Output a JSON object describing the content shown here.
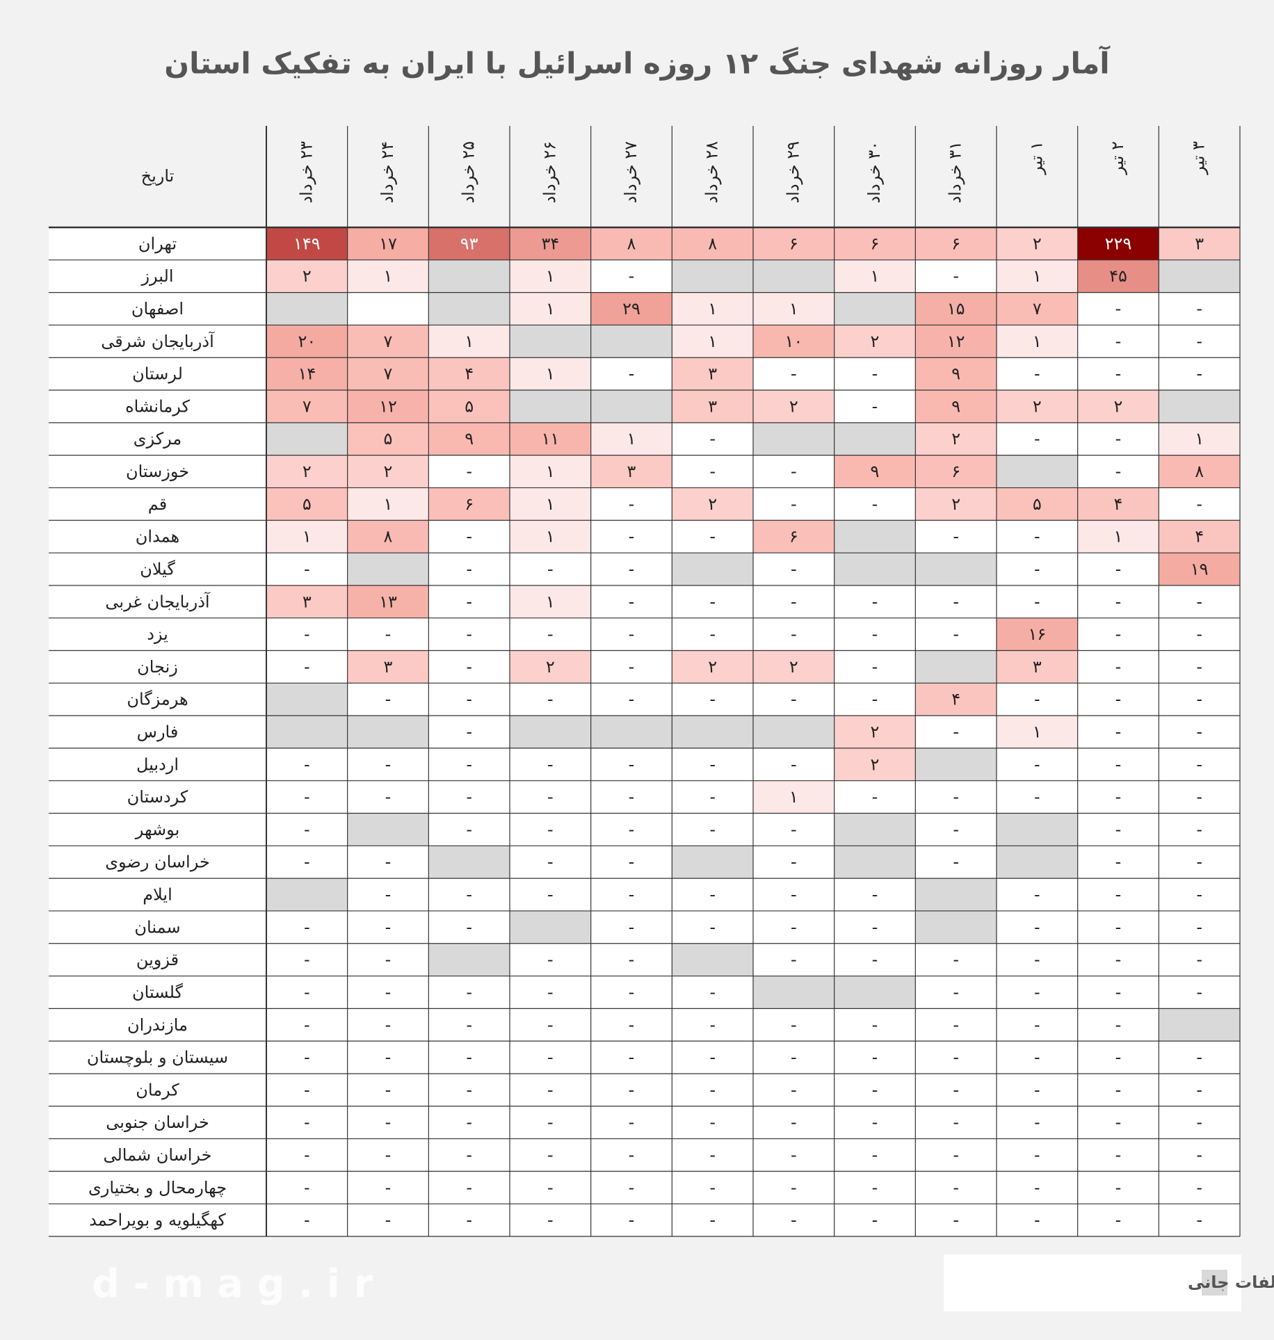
{
  "title": "آمار روزانه شهدای جنگ ۱۲ روزه اسرائیل با ایران به تفکیک استان",
  "table": {
    "corner": "تاریخ",
    "columns": [
      "۲۳ خرداد",
      "۲۴ خرداد",
      "۲۵ خرداد",
      "۲۶ خرداد",
      "۲۷ خرداد",
      "۲۸ خرداد",
      "۲۹ خرداد",
      "۳۰ خرداد",
      "۳۱ خرداد",
      "۱ تیر",
      "۲ تیر",
      "۳ تیر"
    ],
    "blank_cells": [
      [
        2,
        1
      ]
    ],
    "rows": [
      {
        "province": "تهران",
        "cells": [
          "۱۴۹",
          "۱۷",
          "۹۳",
          "۳۴",
          "۸",
          "۸",
          "۶",
          "۶",
          "۶",
          "۲",
          "۲۲۹",
          "۳"
        ]
      },
      {
        "province": "البرز",
        "cells": [
          "۲",
          "۱",
          null,
          "۱",
          "-",
          null,
          null,
          "۱",
          "-",
          "۱",
          "۴۵",
          null
        ]
      },
      {
        "province": "اصفهان",
        "cells": [
          null,
          null,
          null,
          "۱",
          "۲۹",
          "۱",
          "۱",
          null,
          "۱۵",
          "۷",
          "-",
          "-"
        ]
      },
      {
        "province": "آذربایجان شرقی",
        "cells": [
          "۲۰",
          "۷",
          "۱",
          null,
          null,
          "۱",
          "۱۰",
          "۲",
          "۱۲",
          "۱",
          "-",
          "-"
        ]
      },
      {
        "province": "لرستان",
        "cells": [
          "۱۴",
          "۷",
          "۴",
          "۱",
          "-",
          "۳",
          "-",
          "-",
          "۹",
          "-",
          "-",
          "-"
        ]
      },
      {
        "province": "کرمانشاه",
        "cells": [
          "۷",
          "۱۲",
          "۵",
          null,
          null,
          "۳",
          "۲",
          "-",
          "۹",
          "۲",
          "۲",
          null
        ]
      },
      {
        "province": "مرکزی",
        "cells": [
          null,
          "۵",
          "۹",
          "۱۱",
          "۱",
          "-",
          null,
          null,
          "۲",
          "-",
          "-",
          "۱"
        ]
      },
      {
        "province": "خوزستان",
        "cells": [
          "۲",
          "۲",
          "-",
          "۱",
          "۳",
          "-",
          "-",
          "۹",
          "۶",
          null,
          "-",
          "۸"
        ]
      },
      {
        "province": "قم",
        "cells": [
          "۵",
          "۱",
          "۶",
          "۱",
          "-",
          "۲",
          "-",
          "-",
          "۲",
          "۵",
          "۴",
          "-"
        ]
      },
      {
        "province": "همدان",
        "cells": [
          "۱",
          "۸",
          "-",
          "۱",
          "-",
          "-",
          "۶",
          null,
          "-",
          "-",
          "۱",
          "۴"
        ]
      },
      {
        "province": "گیلان",
        "cells": [
          "-",
          null,
          "-",
          "-",
          "-",
          null,
          "-",
          null,
          null,
          "-",
          "-",
          "۱۹"
        ]
      },
      {
        "province": "آذربایجان غربی",
        "cells": [
          "۳",
          "۱۳",
          "-",
          "۱",
          "-",
          "-",
          "-",
          "-",
          "-",
          "-",
          "-",
          "-"
        ]
      },
      {
        "province": "یزد",
        "cells": [
          "-",
          "-",
          "-",
          "-",
          "-",
          "-",
          "-",
          "-",
          "-",
          "۱۶",
          "-",
          "-"
        ]
      },
      {
        "province": "زنجان",
        "cells": [
          "-",
          "۳",
          "-",
          "۲",
          "-",
          "۲",
          "۲",
          "-",
          null,
          "۳",
          "-",
          "-"
        ]
      },
      {
        "province": "هرمزگان",
        "cells": [
          null,
          "-",
          "-",
          "-",
          "-",
          "-",
          "-",
          "-",
          "۴",
          "-",
          "-",
          "-"
        ]
      },
      {
        "province": "فارس",
        "cells": [
          null,
          null,
          "-",
          null,
          null,
          null,
          null,
          "۲",
          "-",
          "۱",
          "-",
          "-"
        ]
      },
      {
        "province": "اردبیل",
        "cells": [
          "-",
          "-",
          "-",
          "-",
          "-",
          "-",
          "-",
          "۲",
          null,
          "-",
          "-",
          "-"
        ]
      },
      {
        "province": "کردستان",
        "cells": [
          "-",
          "-",
          "-",
          "-",
          "-",
          "-",
          "۱",
          "-",
          "-",
          "-",
          "-",
          "-"
        ]
      },
      {
        "province": "بوشهر",
        "cells": [
          "-",
          null,
          "-",
          "-",
          "-",
          "-",
          "-",
          null,
          "-",
          null,
          "-",
          "-"
        ]
      },
      {
        "province": "خراسان رضوی",
        "cells": [
          "-",
          "-",
          null,
          "-",
          "-",
          null,
          "-",
          null,
          "-",
          null,
          "-",
          "-"
        ]
      },
      {
        "province": "ایلام",
        "cells": [
          null,
          "-",
          "-",
          "-",
          "-",
          "-",
          "-",
          "-",
          null,
          "-",
          "-",
          "-"
        ]
      },
      {
        "province": "سمنان",
        "cells": [
          "-",
          "-",
          "-",
          null,
          "-",
          "-",
          "-",
          "-",
          null,
          "-",
          "-",
          "-"
        ]
      },
      {
        "province": "قزوین",
        "cells": [
          "-",
          "-",
          null,
          "-",
          "-",
          null,
          "-",
          "-",
          "-",
          "-",
          "-",
          "-"
        ]
      },
      {
        "province": "گلستان",
        "cells": [
          "-",
          "-",
          "-",
          "-",
          "-",
          "-",
          null,
          null,
          "-",
          "-",
          "-",
          "-"
        ]
      },
      {
        "province": "مازندران",
        "cells": [
          "-",
          "-",
          "-",
          "-",
          "-",
          "-",
          "-",
          "-",
          "-",
          "-",
          "-",
          null
        ]
      },
      {
        "province": "سیستان و بلوچستان",
        "cells": [
          "-",
          "-",
          "-",
          "-",
          "-",
          "-",
          "-",
          "-",
          "-",
          "-",
          "-",
          "-"
        ]
      },
      {
        "province": "کرمان",
        "cells": [
          "-",
          "-",
          "-",
          "-",
          "-",
          "-",
          "-",
          "-",
          "-",
          "-",
          "-",
          "-"
        ]
      },
      {
        "province": "خراسان جنوبی",
        "cells": [
          "-",
          "-",
          "-",
          "-",
          "-",
          "-",
          "-",
          "-",
          "-",
          "-",
          "-",
          "-"
        ]
      },
      {
        "province": "خراسان شمالی",
        "cells": [
          "-",
          "-",
          "-",
          "-",
          "-",
          "-",
          "-",
          "-",
          "-",
          "-",
          "-",
          "-"
        ]
      },
      {
        "province": "چهارمحال و بختیاری",
        "cells": [
          "-",
          "-",
          "-",
          "-",
          "-",
          "-",
          "-",
          "-",
          "-",
          "-",
          "-",
          "-"
        ]
      },
      {
        "province": "کهگیلویه و بویراحمد",
        "cells": [
          "-",
          "-",
          "-",
          "-",
          "-",
          "-",
          "-",
          "-",
          "-",
          "-",
          "-",
          "-"
        ]
      }
    ]
  },
  "legend": {
    "label": "حمله بدون اخبار تلفات جانی",
    "color": "#d9d9d9"
  },
  "watermark": "d - m a g . i r"
}
